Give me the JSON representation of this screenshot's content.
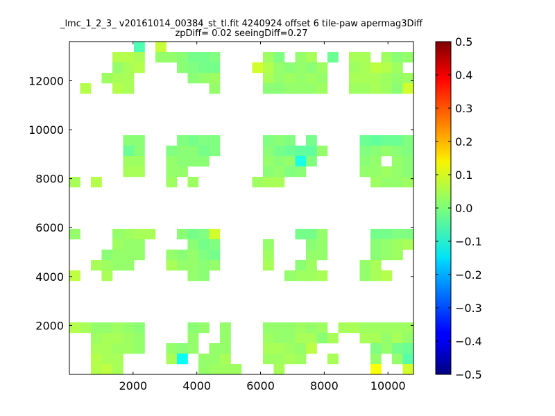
{
  "chart_data": {
    "type": "heatmap",
    "title": "_lmc_1_2_3_ v20161014_00384_st_tl.fit 4240924 offset 6 tile-paw apermag3Diff",
    "subtitle": "zpDiff= 0.02 seeingDiff=0.27",
    "xlabel": "",
    "ylabel": "",
    "xlim": [
      0,
      10800
    ],
    "ylim": [
      0,
      13600
    ],
    "xticks": [
      2000,
      4000,
      6000,
      8000,
      10000
    ],
    "xtick_labels": [
      "2000",
      "4000",
      "6000",
      "8000",
      "10000"
    ],
    "yticks": [
      2000,
      4000,
      6000,
      8000,
      10000,
      12000
    ],
    "ytick_labels": [
      "2000",
      "4000",
      "6000",
      "8000",
      "10000",
      "12000"
    ],
    "grid": false,
    "colorbar": {
      "colormap": "jet",
      "vmin": -0.5,
      "vmax": 0.5,
      "ticks": [
        0.5,
        0.4,
        0.3,
        0.2,
        0.1,
        0.0,
        -0.1,
        -0.2,
        -0.3,
        -0.4,
        -0.5
      ],
      "tick_labels": [
        "0.5",
        "0.4",
        "0.3",
        "0.2",
        "0.1",
        "0.0",
        "−0.1",
        "−0.2",
        "−0.3",
        "−0.4",
        "−0.5"
      ]
    },
    "cell_size": [
      337.5,
      425
    ],
    "cell_value_note": "approximate: cells are x-centre, y-centre, value (mag)",
    "cells": [
      [
        2194,
        13388,
        -0.05
      ],
      [
        2869,
        13388,
        0.07
      ],
      [
        1519,
        12963,
        0.05
      ],
      [
        1856,
        12963,
        0.05
      ],
      [
        2194,
        12963,
        0.04
      ],
      [
        2869,
        12963,
        0.02
      ],
      [
        3206,
        12963,
        0.02
      ],
      [
        3544,
        12963,
        0.01
      ],
      [
        3881,
        12963,
        -0.01
      ],
      [
        4219,
        12963,
        -0.01
      ],
      [
        4556,
        12963,
        0.0
      ],
      [
        6244,
        12963,
        0.03
      ],
      [
        6581,
        12963,
        0.0
      ],
      [
        7256,
        12963,
        0.02
      ],
      [
        7594,
        12963,
        0.04
      ],
      [
        8269,
        12963,
        -0.02
      ],
      [
        8944,
        12963,
        0.04
      ],
      [
        9281,
        12963,
        0.04
      ],
      [
        9956,
        12963,
        0.03
      ],
      [
        10294,
        12963,
        0.01
      ],
      [
        10631,
        12963,
        0.02
      ],
      [
        1519,
        12538,
        0.02
      ],
      [
        1856,
        12538,
        0.04
      ],
      [
        2194,
        12538,
        0.05
      ],
      [
        3544,
        12538,
        0.01
      ],
      [
        3881,
        12538,
        0.0
      ],
      [
        4219,
        12538,
        -0.01
      ],
      [
        4556,
        12538,
        -0.01
      ],
      [
        5906,
        12538,
        0.08
      ],
      [
        6244,
        12538,
        0.05
      ],
      [
        6581,
        12538,
        0.02
      ],
      [
        6919,
        12538,
        0.01
      ],
      [
        7256,
        12538,
        0.02
      ],
      [
        7594,
        12538,
        0.01
      ],
      [
        7931,
        12538,
        0.03
      ],
      [
        8944,
        12538,
        0.03
      ],
      [
        9281,
        12538,
        0.04
      ],
      [
        9619,
        12538,
        0.06
      ],
      [
        9956,
        12538,
        0.05
      ],
      [
        10294,
        12538,
        0.03
      ],
      [
        1181,
        12113,
        0.03
      ],
      [
        1519,
        12113,
        0.04
      ],
      [
        1856,
        12113,
        0.04
      ],
      [
        3881,
        12113,
        0.01
      ],
      [
        4219,
        12113,
        0.02
      ],
      [
        4556,
        12113,
        0.03
      ],
      [
        6244,
        12113,
        0.04
      ],
      [
        6581,
        12113,
        0.02
      ],
      [
        6919,
        12113,
        0.03
      ],
      [
        7256,
        12113,
        0.02
      ],
      [
        7594,
        12113,
        0.03
      ],
      [
        7931,
        12113,
        0.02
      ],
      [
        8944,
        12113,
        0.04
      ],
      [
        9281,
        12113,
        0.04
      ],
      [
        9619,
        12113,
        0.04
      ],
      [
        9956,
        12113,
        0.03
      ],
      [
        10294,
        12113,
        0.02
      ],
      [
        10631,
        12113,
        0.03
      ],
      [
        506,
        11688,
        0.05
      ],
      [
        1519,
        11688,
        0.05
      ],
      [
        1856,
        11688,
        0.04
      ],
      [
        4556,
        11688,
        0.02
      ],
      [
        6244,
        11688,
        0.01
      ],
      [
        6581,
        11688,
        0.01
      ],
      [
        6919,
        11688,
        0.02
      ],
      [
        7256,
        11688,
        0.02
      ],
      [
        7594,
        11688,
        0.02
      ],
      [
        7931,
        11688,
        0.03
      ],
      [
        8944,
        11688,
        0.03
      ],
      [
        9281,
        11688,
        0.03
      ],
      [
        9619,
        11688,
        0.04
      ],
      [
        9956,
        11688,
        0.03
      ],
      [
        10294,
        11688,
        0.01
      ],
      [
        10631,
        11688,
        0.08
      ],
      [
        1856,
        9563,
        0.01
      ],
      [
        2194,
        9563,
        0.01
      ],
      [
        3544,
        9563,
        0.0
      ],
      [
        3881,
        9563,
        -0.01
      ],
      [
        4219,
        9563,
        0.0
      ],
      [
        4556,
        9563,
        0.0
      ],
      [
        6244,
        9563,
        0.0
      ],
      [
        6581,
        9563,
        0.01
      ],
      [
        6919,
        9563,
        0.0
      ],
      [
        7594,
        9563,
        -0.01
      ],
      [
        9281,
        9563,
        -0.02
      ],
      [
        9619,
        9563,
        -0.03
      ],
      [
        9956,
        9563,
        -0.02
      ],
      [
        10294,
        9563,
        -0.02
      ],
      [
        10631,
        9563,
        0.0
      ],
      [
        1856,
        9138,
        -0.02
      ],
      [
        2194,
        9138,
        0.01
      ],
      [
        3206,
        9138,
        0.0
      ],
      [
        3544,
        9138,
        0.01
      ],
      [
        3881,
        9138,
        0.01
      ],
      [
        4219,
        9138,
        -0.01
      ],
      [
        4556,
        9138,
        0.0
      ],
      [
        6244,
        9138,
        0.01
      ],
      [
        6581,
        9138,
        -0.01
      ],
      [
        6919,
        9138,
        -0.02
      ],
      [
        7256,
        9138,
        -0.03
      ],
      [
        7594,
        9138,
        -0.03
      ],
      [
        7931,
        9138,
        0.02
      ],
      [
        9281,
        9138,
        0.0
      ],
      [
        9619,
        9138,
        0.01
      ],
      [
        9956,
        9138,
        0.02
      ],
      [
        10294,
        9138,
        0.01
      ],
      [
        10631,
        9138,
        0.0
      ],
      [
        1856,
        8713,
        0.03
      ],
      [
        2194,
        8713,
        0.03
      ],
      [
        3206,
        8713,
        0.02
      ],
      [
        3544,
        8713,
        0.01
      ],
      [
        3881,
        8713,
        0.01
      ],
      [
        4219,
        8713,
        0.01
      ],
      [
        6244,
        8713,
        0.02
      ],
      [
        6581,
        8713,
        0.01
      ],
      [
        6919,
        8713,
        0.02
      ],
      [
        7256,
        8713,
        -0.1
      ],
      [
        7594,
        8713,
        0.0
      ],
      [
        9281,
        8713,
        0.01
      ],
      [
        9619,
        8713,
        0.02
      ],
      [
        10294,
        8713,
        0.02
      ],
      [
        10631,
        8713,
        0.01
      ],
      [
        1856,
        8288,
        0.04
      ],
      [
        2194,
        8288,
        0.04
      ],
      [
        3206,
        8288,
        0.02
      ],
      [
        3544,
        8288,
        0.02
      ],
      [
        6244,
        8288,
        0.01
      ],
      [
        6581,
        8288,
        0.02
      ],
      [
        6919,
        8288,
        0.0
      ],
      [
        7256,
        8288,
        0.01
      ],
      [
        9281,
        8288,
        0.02
      ],
      [
        9619,
        8288,
        0.02
      ],
      [
        9956,
        8288,
        0.03
      ],
      [
        10294,
        8288,
        0.02
      ],
      [
        10631,
        8288,
        0.01
      ],
      [
        169,
        7863,
        0.04
      ],
      [
        844,
        7863,
        0.05
      ],
      [
        3206,
        7863,
        0.03
      ],
      [
        3881,
        7863,
        0.03
      ],
      [
        5906,
        7863,
        0.03
      ],
      [
        6244,
        7863,
        0.04
      ],
      [
        6581,
        7863,
        0.04
      ],
      [
        9619,
        7863,
        0.03
      ],
      [
        9956,
        7863,
        0.02
      ],
      [
        10294,
        7863,
        0.02
      ],
      [
        10631,
        7863,
        0.03
      ],
      [
        169,
        5738,
        0.02
      ],
      [
        1519,
        5738,
        0.02
      ],
      [
        1856,
        5738,
        0.03
      ],
      [
        2194,
        5738,
        0.04
      ],
      [
        2531,
        5738,
        0.04
      ],
      [
        3544,
        5738,
        0.01
      ],
      [
        3881,
        5738,
        -0.01
      ],
      [
        4219,
        5738,
        0.0
      ],
      [
        4556,
        5738,
        0.08
      ],
      [
        7256,
        5738,
        -0.01
      ],
      [
        7594,
        5738,
        -0.01
      ],
      [
        7931,
        5738,
        0.02
      ],
      [
        9619,
        5738,
        -0.01
      ],
      [
        9956,
        5738,
        -0.01
      ],
      [
        10294,
        5738,
        0.0
      ],
      [
        10631,
        5738,
        0.0
      ],
      [
        1519,
        5313,
        0.03
      ],
      [
        1856,
        5313,
        0.02
      ],
      [
        2194,
        5313,
        0.02
      ],
      [
        3881,
        5313,
        0.01
      ],
      [
        4219,
        5313,
        -0.01
      ],
      [
        4556,
        5313,
        0.0
      ],
      [
        6244,
        5313,
        0.02
      ],
      [
        7594,
        5313,
        0.01
      ],
      [
        7931,
        5313,
        0.02
      ],
      [
        9619,
        5313,
        0.01
      ],
      [
        9956,
        5313,
        0.02
      ],
      [
        10294,
        5313,
        0.03
      ],
      [
        10631,
        5313,
        0.04
      ],
      [
        1181,
        4888,
        0.01
      ],
      [
        1519,
        4888,
        0.02
      ],
      [
        1856,
        4888,
        0.02
      ],
      [
        2194,
        4888,
        0.02
      ],
      [
        3206,
        4888,
        0.02
      ],
      [
        3544,
        4888,
        0.01
      ],
      [
        3881,
        4888,
        0.02
      ],
      [
        4219,
        4888,
        0.0
      ],
      [
        4556,
        4888,
        -0.01
      ],
      [
        6244,
        4888,
        0.03
      ],
      [
        7594,
        4888,
        0.02
      ],
      [
        7931,
        4888,
        0.02
      ],
      [
        9619,
        4888,
        0.01
      ],
      [
        9956,
        4888,
        0.02
      ],
      [
        10294,
        4888,
        0.03
      ],
      [
        844,
        4463,
        0.04
      ],
      [
        1181,
        4463,
        0.03
      ],
      [
        1519,
        4463,
        0.02
      ],
      [
        1856,
        4463,
        0.02
      ],
      [
        3206,
        4463,
        0.04
      ],
      [
        3544,
        4463,
        0.02
      ],
      [
        3881,
        4463,
        0.02
      ],
      [
        4219,
        4463,
        0.01
      ],
      [
        4556,
        4463,
        0.02
      ],
      [
        6244,
        4463,
        0.04
      ],
      [
        7256,
        4463,
        0.01
      ],
      [
        7594,
        4463,
        0.03
      ],
      [
        9281,
        4463,
        0.02
      ],
      [
        9619,
        4463,
        0.04
      ],
      [
        169,
        4038,
        0.06
      ],
      [
        1181,
        4038,
        0.04
      ],
      [
        3881,
        4038,
        0.02
      ],
      [
        4219,
        4038,
        0.01
      ],
      [
        6919,
        4038,
        0.02
      ],
      [
        7256,
        4038,
        0.03
      ],
      [
        7594,
        4038,
        0.03
      ],
      [
        7931,
        4038,
        0.04
      ],
      [
        9281,
        4038,
        0.02
      ],
      [
        9619,
        4038,
        0.04
      ],
      [
        9956,
        4038,
        0.05
      ],
      [
        169,
        1913,
        0.05
      ],
      [
        506,
        1913,
        0.04
      ],
      [
        844,
        1913,
        0.02
      ],
      [
        1181,
        1913,
        0.02
      ],
      [
        1519,
        1913,
        0.03
      ],
      [
        1856,
        1913,
        0.02
      ],
      [
        2194,
        1913,
        0.01
      ],
      [
        3881,
        1913,
        0.01
      ],
      [
        4219,
        1913,
        0.02
      ],
      [
        4894,
        1913,
        0.02
      ],
      [
        6244,
        1913,
        0.02
      ],
      [
        6581,
        1913,
        0.02
      ],
      [
        6919,
        1913,
        0.02
      ],
      [
        7256,
        1913,
        0.03
      ],
      [
        7594,
        1913,
        0.02
      ],
      [
        7931,
        1913,
        0.03
      ],
      [
        8606,
        1913,
        0.04
      ],
      [
        8944,
        1913,
        0.04
      ],
      [
        9281,
        1913,
        0.03
      ],
      [
        9619,
        1913,
        0.03
      ],
      [
        9956,
        1913,
        0.03
      ],
      [
        10294,
        1913,
        0.03
      ],
      [
        10631,
        1913,
        0.03
      ],
      [
        844,
        1488,
        0.03
      ],
      [
        1181,
        1488,
        0.04
      ],
      [
        1519,
        1488,
        0.04
      ],
      [
        1856,
        1488,
        0.03
      ],
      [
        2194,
        1488,
        0.02
      ],
      [
        3881,
        1488,
        0.02
      ],
      [
        4894,
        1488,
        0.02
      ],
      [
        6244,
        1488,
        0.03
      ],
      [
        6581,
        1488,
        0.02
      ],
      [
        6919,
        1488,
        0.02
      ],
      [
        7256,
        1488,
        0.04
      ],
      [
        7594,
        1488,
        0.04
      ],
      [
        7931,
        1488,
        0.01
      ],
      [
        8269,
        1488,
        0.04
      ],
      [
        9281,
        1488,
        0.04
      ],
      [
        9619,
        1488,
        0.04
      ],
      [
        9956,
        1488,
        0.02
      ],
      [
        10294,
        1488,
        0.04
      ],
      [
        10631,
        1488,
        0.02
      ],
      [
        844,
        1063,
        0.04
      ],
      [
        1181,
        1063,
        0.04
      ],
      [
        1519,
        1063,
        0.03
      ],
      [
        1856,
        1063,
        0.03
      ],
      [
        2194,
        1063,
        0.02
      ],
      [
        3206,
        1063,
        0.02
      ],
      [
        3544,
        1063,
        0.01
      ],
      [
        3881,
        1063,
        0.02
      ],
      [
        4556,
        1063,
        0.02
      ],
      [
        4894,
        1063,
        0.02
      ],
      [
        6244,
        1063,
        0.04
      ],
      [
        6581,
        1063,
        0.04
      ],
      [
        6919,
        1063,
        0.03
      ],
      [
        7256,
        1063,
        0.02
      ],
      [
        7594,
        1063,
        0.06
      ],
      [
        9619,
        1063,
        0.0
      ],
      [
        9956,
        1063,
        0.02
      ],
      [
        10294,
        1063,
        -0.01
      ],
      [
        10631,
        1063,
        -0.02
      ],
      [
        844,
        638,
        0.05
      ],
      [
        1181,
        638,
        0.04
      ],
      [
        1519,
        638,
        0.04
      ],
      [
        3206,
        638,
        0.04
      ],
      [
        3544,
        638,
        -0.12
      ],
      [
        4219,
        638,
        0.02
      ],
      [
        4556,
        638,
        0.02
      ],
      [
        4894,
        638,
        0.04
      ],
      [
        6244,
        638,
        0.03
      ],
      [
        6581,
        638,
        0.03
      ],
      [
        6919,
        638,
        0.04
      ],
      [
        7256,
        638,
        0.03
      ],
      [
        8269,
        638,
        0.04
      ],
      [
        9619,
        638,
        0.02
      ],
      [
        10294,
        638,
        0.02
      ],
      [
        10631,
        638,
        -0.04
      ],
      [
        844,
        213,
        0.05
      ],
      [
        1181,
        213,
        0.06
      ],
      [
        1519,
        213,
        0.04
      ],
      [
        4219,
        213,
        0.02
      ],
      [
        4556,
        213,
        0.03
      ],
      [
        4894,
        213,
        0.03
      ],
      [
        5231,
        213,
        0.03
      ],
      [
        6581,
        213,
        0.04
      ],
      [
        9619,
        213,
        0.12
      ],
      [
        10631,
        213,
        0.08
      ]
    ]
  }
}
